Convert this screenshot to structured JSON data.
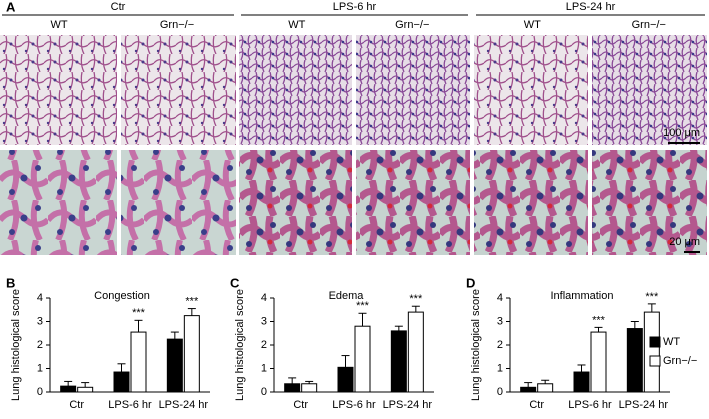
{
  "panel_a": {
    "label": "A",
    "groups": [
      {
        "title": "Ctr",
        "columns": [
          "WT",
          "Grn−/−"
        ]
      },
      {
        "title": "LPS-6 hr",
        "columns": [
          "WT",
          "Grn−/−"
        ]
      },
      {
        "title": "LPS-24 hr",
        "columns": [
          "WT",
          "Grn−/−"
        ]
      }
    ],
    "scale_bars": [
      "100 μm",
      "20 μm"
    ]
  },
  "chart_data": [
    {
      "type": "bar",
      "panel": "B",
      "title": "Congestion",
      "y_label": "Lung histological score",
      "categories": [
        "Ctr",
        "LPS-6 hr",
        "LPS-24 hr"
      ],
      "series": [
        {
          "name": "WT",
          "color": "#000000",
          "values": [
            0.25,
            0.85,
            2.25
          ],
          "errors": [
            0.2,
            0.35,
            0.3
          ]
        },
        {
          "name": "Grn−/−",
          "color": "#ffffff",
          "values": [
            0.2,
            2.55,
            3.25
          ],
          "errors": [
            0.2,
            0.5,
            0.3
          ],
          "significance": [
            null,
            "***",
            "***"
          ]
        }
      ],
      "ylim": [
        0,
        4
      ],
      "yticks": [
        0,
        1,
        2,
        3,
        4
      ],
      "legend": false
    },
    {
      "type": "bar",
      "panel": "C",
      "title": "Edema",
      "y_label": "Lung histological score",
      "categories": [
        "Ctr",
        "LPS-6 hr",
        "LPS-24 hr"
      ],
      "series": [
        {
          "name": "WT",
          "color": "#000000",
          "values": [
            0.35,
            1.05,
            2.6
          ],
          "errors": [
            0.25,
            0.5,
            0.2
          ]
        },
        {
          "name": "Grn−/−",
          "color": "#ffffff",
          "values": [
            0.35,
            2.8,
            3.4
          ],
          "errors": [
            0.1,
            0.55,
            0.25
          ],
          "significance": [
            null,
            "***",
            "***"
          ]
        }
      ],
      "ylim": [
        0,
        4
      ],
      "yticks": [
        0,
        1,
        2,
        3,
        4
      ],
      "legend": false
    },
    {
      "type": "bar",
      "panel": "D",
      "title": "Inflammation",
      "y_label": "Lung histological score",
      "categories": [
        "Ctr",
        "LPS-6 hr",
        "LPS-24 hr"
      ],
      "series": [
        {
          "name": "WT",
          "color": "#000000",
          "values": [
            0.2,
            0.85,
            2.7
          ],
          "errors": [
            0.2,
            0.3,
            0.3
          ]
        },
        {
          "name": "Grn−/−",
          "color": "#ffffff",
          "values": [
            0.35,
            2.55,
            3.4
          ],
          "errors": [
            0.15,
            0.2,
            0.35
          ],
          "significance": [
            null,
            "***",
            "***"
          ]
        }
      ],
      "ylim": [
        0,
        4
      ],
      "yticks": [
        0,
        1,
        2,
        3,
        4
      ],
      "legend": true
    }
  ]
}
